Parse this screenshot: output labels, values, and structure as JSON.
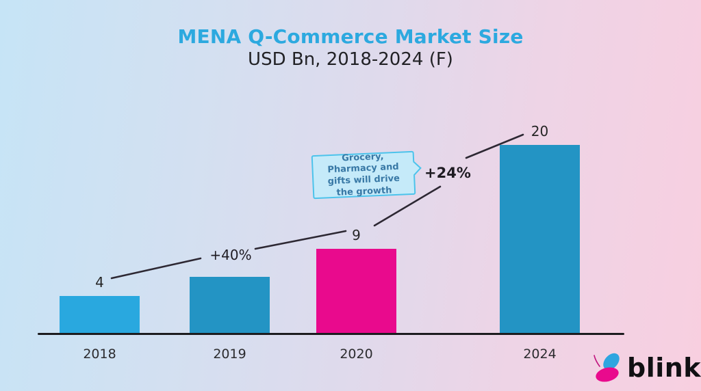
{
  "header": {
    "title": "MENA Q-Commerce Market Size",
    "subtitle": "USD Bn, 2018-2024 (F)",
    "title_color": "#2CA9DF"
  },
  "chart_data": {
    "type": "bar",
    "title": "MENA Q-Commerce Market Size",
    "subtitle": "USD Bn, 2018-2024 (F)",
    "unit": "USD Bn",
    "categories": [
      "2018",
      "2019",
      "2020",
      "2024"
    ],
    "values": [
      4,
      6,
      9,
      20
    ],
    "data_labels": [
      "4",
      "",
      "9",
      "20"
    ],
    "bar_colors": [
      "#29A8DF",
      "#2394C4",
      "#E90A8D",
      "#2394C4"
    ],
    "ylim": [
      0,
      21
    ],
    "grid": false,
    "forecast_note": "2024 is a forecast (F)",
    "growth_annotations": [
      {
        "label": "+40%",
        "from": "2018",
        "to": "2020"
      },
      {
        "label": "+24%",
        "from": "2020",
        "to": "2024"
      }
    ],
    "callout": {
      "text": "Grocery, Pharmacy and gifts will drive the growth",
      "fill": "#C5EAF9",
      "border": "#4CC3EB",
      "text_color": "#3878A5"
    }
  },
  "annotations": {
    "growth_1": "+40%",
    "growth_2": "+24%",
    "callout_text": "Grocery, Pharmacy and gifts will drive the growth"
  },
  "logo": {
    "text": "blink",
    "icon_blue": "#2FA5E0",
    "icon_pink": "#E90A8D"
  }
}
